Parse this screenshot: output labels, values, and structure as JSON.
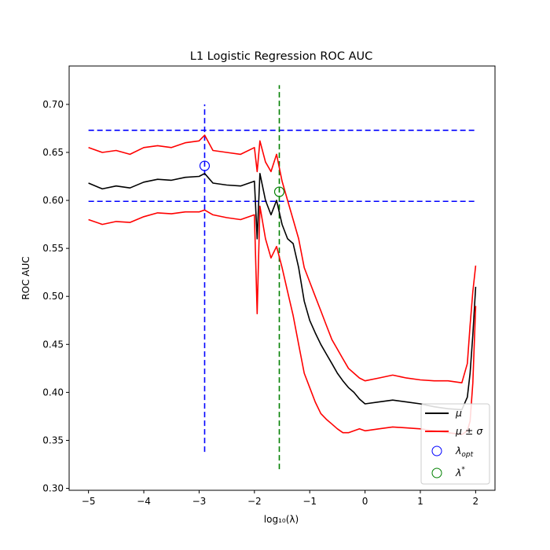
{
  "chart_data": {
    "type": "line",
    "title": "L1 Logistic Regression ROC AUC",
    "xlabel": "log₁₀(λ)",
    "ylabel": "ROC AUC",
    "xlim": [
      -5.35,
      2.35
    ],
    "ylim": [
      0.298,
      0.74
    ],
    "x_ticks": [
      -5,
      -4,
      -3,
      -2,
      -1,
      0,
      1,
      2
    ],
    "x_tick_labels": [
      "−5",
      "−4",
      "−3",
      "−2",
      "−1",
      "0",
      "1",
      "2"
    ],
    "y_ticks": [
      0.3,
      0.35,
      0.4,
      0.45,
      0.5,
      0.55,
      0.6,
      0.65,
      0.7
    ],
    "y_tick_labels": [
      "0.30",
      "0.35",
      "0.40",
      "0.45",
      "0.50",
      "0.55",
      "0.60",
      "0.65",
      "0.70"
    ],
    "legend_position": "lower-right",
    "colors": {
      "mean": "#000000",
      "band": "#ff0000",
      "ref": "#0000ff",
      "star": "#008000"
    },
    "series": [
      {
        "name": "μ",
        "x": [
          -5.0,
          -4.75,
          -4.5,
          -4.25,
          -4.0,
          -3.75,
          -3.5,
          -3.25,
          -3.0,
          -2.9,
          -2.75,
          -2.5,
          -2.25,
          -2.0,
          -1.95,
          -1.9,
          -1.8,
          -1.7,
          -1.6,
          -1.5,
          -1.4,
          -1.3,
          -1.2,
          -1.1,
          -1.0,
          -0.9,
          -0.8,
          -0.7,
          -0.6,
          -0.5,
          -0.4,
          -0.3,
          -0.2,
          -0.1,
          0.0,
          0.25,
          0.5,
          0.75,
          1.0,
          1.25,
          1.5,
          1.75,
          1.85,
          1.9,
          1.95,
          2.0
        ],
        "values": [
          0.618,
          0.612,
          0.615,
          0.613,
          0.619,
          0.622,
          0.621,
          0.624,
          0.625,
          0.628,
          0.618,
          0.616,
          0.615,
          0.62,
          0.56,
          0.628,
          0.6,
          0.585,
          0.6,
          0.575,
          0.56,
          0.555,
          0.53,
          0.495,
          0.475,
          0.462,
          0.45,
          0.44,
          0.43,
          0.42,
          0.412,
          0.405,
          0.4,
          0.393,
          0.388,
          0.39,
          0.392,
          0.39,
          0.388,
          0.385,
          0.383,
          0.382,
          0.395,
          0.42,
          0.46,
          0.51
        ]
      },
      {
        "name": "μ ± σ",
        "x": [
          -5.0,
          -4.75,
          -4.5,
          -4.25,
          -4.0,
          -3.75,
          -3.5,
          -3.25,
          -3.0,
          -2.9,
          -2.75,
          -2.5,
          -2.25,
          -2.0,
          -1.95,
          -1.9,
          -1.8,
          -1.7,
          -1.6,
          -1.5,
          -1.4,
          -1.3,
          -1.2,
          -1.1,
          -1.0,
          -0.9,
          -0.8,
          -0.7,
          -0.6,
          -0.5,
          -0.4,
          -0.3,
          -0.2,
          -0.1,
          0.0,
          0.25,
          0.5,
          0.75,
          1.0,
          1.25,
          1.5,
          1.75,
          1.85,
          1.9,
          1.95,
          2.0
        ],
        "values": [
          0.655,
          0.65,
          0.652,
          0.648,
          0.655,
          0.657,
          0.655,
          0.66,
          0.662,
          0.668,
          0.652,
          0.65,
          0.648,
          0.655,
          0.63,
          0.662,
          0.64,
          0.63,
          0.648,
          0.62,
          0.6,
          0.58,
          0.56,
          0.53,
          0.515,
          0.5,
          0.485,
          0.47,
          0.455,
          0.445,
          0.435,
          0.425,
          0.42,
          0.415,
          0.412,
          0.415,
          0.418,
          0.415,
          0.413,
          0.412,
          0.412,
          0.41,
          0.43,
          0.47,
          0.505,
          0.532
        ]
      },
      {
        "name": "μ − σ",
        "x": [
          -5.0,
          -4.75,
          -4.5,
          -4.25,
          -4.0,
          -3.75,
          -3.5,
          -3.25,
          -3.0,
          -2.9,
          -2.75,
          -2.5,
          -2.25,
          -2.0,
          -1.95,
          -1.9,
          -1.8,
          -1.7,
          -1.6,
          -1.5,
          -1.4,
          -1.3,
          -1.2,
          -1.1,
          -1.0,
          -0.9,
          -0.8,
          -0.7,
          -0.6,
          -0.5,
          -0.4,
          -0.3,
          -0.2,
          -0.1,
          0.0,
          0.25,
          0.5,
          0.75,
          1.0,
          1.25,
          1.5,
          1.75,
          1.85,
          1.9,
          1.95,
          2.0
        ],
        "values": [
          0.58,
          0.575,
          0.578,
          0.577,
          0.583,
          0.587,
          0.586,
          0.588,
          0.588,
          0.59,
          0.585,
          0.582,
          0.58,
          0.585,
          0.482,
          0.594,
          0.56,
          0.54,
          0.552,
          0.53,
          0.505,
          0.48,
          0.45,
          0.42,
          0.405,
          0.39,
          0.378,
          0.372,
          0.367,
          0.362,
          0.358,
          0.358,
          0.36,
          0.362,
          0.36,
          0.362,
          0.364,
          0.363,
          0.362,
          0.36,
          0.358,
          0.356,
          0.36,
          0.37,
          0.41,
          0.49
        ]
      }
    ],
    "reference_lines": {
      "h_upper": {
        "y": 0.673,
        "x_range": [
          -5.0,
          2.0
        ]
      },
      "h_lower": {
        "y": 0.599,
        "x_range": [
          -5.0,
          2.0
        ]
      },
      "v_opt": {
        "x": -2.9,
        "y_range": [
          0.338,
          0.7
        ]
      },
      "v_star": {
        "x": -1.55,
        "y_range": [
          0.32,
          0.72
        ]
      }
    },
    "markers": {
      "lambda_opt": {
        "x": -2.9,
        "y": 0.636
      },
      "lambda_star": {
        "x": -1.55,
        "y": 0.609
      }
    },
    "legend": {
      "mean": "μ",
      "band": "μ ± σ",
      "opt": "λ",
      "opt_sub": "opt",
      "star": "λ",
      "star_sup": "*"
    }
  }
}
